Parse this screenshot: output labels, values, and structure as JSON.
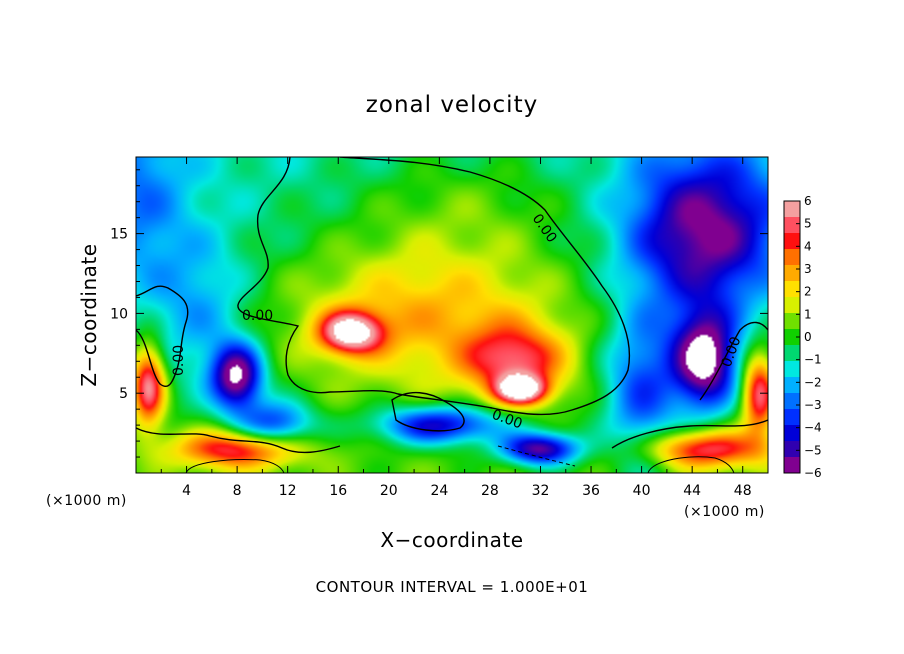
{
  "chart_data": {
    "type": "heatmap",
    "title": "zonal velocity",
    "xlabel": "X−coordinate",
    "ylabel": "Z−coordinate",
    "x_unit_left": "(×1000 m)",
    "x_unit_right": "(×1000 m)",
    "x_ticks": [
      4,
      8,
      12,
      16,
      20,
      24,
      28,
      32,
      36,
      40,
      44,
      48
    ],
    "y_ticks": [
      5,
      10,
      15
    ],
    "xlim": [
      0,
      50
    ],
    "ylim": [
      0,
      19.8
    ],
    "colorbar": {
      "ticks": [
        "6",
        "5",
        "4",
        "3",
        "2",
        "1",
        "0",
        "−1",
        "−2",
        "−3",
        "−4",
        "−5",
        "−6"
      ],
      "range": [
        -6,
        6
      ],
      "colors": [
        "#f4a0a0",
        "#ff5060",
        "#ff1010",
        "#ff7000",
        "#ffaa00",
        "#ffe000",
        "#d8f000",
        "#70e000",
        "#10d000",
        "#00d870",
        "#00e8e0",
        "#00b0ff",
        "#0070ff",
        "#0030ff",
        "#0000d8",
        "#3000b0",
        "#800090"
      ]
    },
    "contour_labels": [
      "0.00",
      "0.00",
      "0.00",
      "0.00",
      "0.00"
    ],
    "features": [
      {
        "x": 23,
        "z": 10,
        "sx": 11,
        "sz": 4.5,
        "u": 3.2
      },
      {
        "x": 17,
        "z": 8.8,
        "sx": 2.5,
        "sz": 1.3,
        "u": 6.5
      },
      {
        "x": 30,
        "z": 7,
        "sx": 4,
        "sz": 2.2,
        "u": 4.5
      },
      {
        "x": 30.5,
        "z": 5.2,
        "sx": 2,
        "sz": 0.9,
        "u": 6.5
      },
      {
        "x": 1,
        "z": 5.5,
        "sx": 1.3,
        "sz": 2.5,
        "u": 6
      },
      {
        "x": 49.3,
        "z": 5,
        "sx": 1.3,
        "sz": 2.5,
        "u": 5.5
      },
      {
        "x": 8,
        "z": 1.5,
        "sx": 5,
        "sz": 1.2,
        "u": 5
      },
      {
        "x": 45,
        "z": 1.5,
        "sx": 5,
        "sz": 1.2,
        "u": 5
      },
      {
        "x": 26,
        "z": 17,
        "sx": 9,
        "sz": 4,
        "u": 1.3
      },
      {
        "x": 45,
        "z": 15,
        "sx": 6,
        "sz": 5,
        "u": -5.5
      },
      {
        "x": 45,
        "z": 7,
        "sx": 2.5,
        "sz": 3,
        "u": -7
      },
      {
        "x": 40,
        "z": 5,
        "sx": 3,
        "sz": 5,
        "u": -3.5
      },
      {
        "x": 8,
        "z": 6,
        "sx": 2,
        "sz": 2,
        "u": -6.5
      },
      {
        "x": 5,
        "z": 10,
        "sx": 4,
        "sz": 5,
        "u": -2
      },
      {
        "x": 24,
        "z": 3,
        "sx": 5,
        "sz": 1.2,
        "u": -5
      },
      {
        "x": 32,
        "z": 1.5,
        "sx": 3,
        "sz": 1,
        "u": -6
      },
      {
        "x": 11,
        "z": 3,
        "sx": 3,
        "sz": 1.5,
        "u": -4
      },
      {
        "x": 0,
        "z": 17,
        "sx": 4,
        "sz": 6,
        "u": -2
      }
    ],
    "legend": "right",
    "grid": false
  },
  "footer": "CONTOUR INTERVAL = 1.000E+01"
}
